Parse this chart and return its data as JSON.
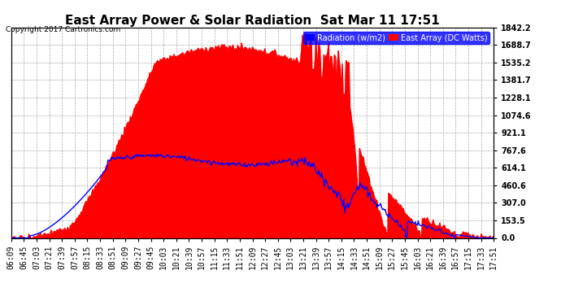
{
  "title": "East Array Power & Solar Radiation  Sat Mar 11 17:51",
  "copyright": "Copyright 2017 Cartronics.com",
  "legend_radiation": "Radiation (w/m2)",
  "legend_east": "East Array (DC Watts)",
  "yticks_right": [
    0.0,
    153.5,
    307.0,
    460.6,
    614.1,
    767.6,
    921.1,
    1074.6,
    1228.1,
    1381.7,
    1535.2,
    1688.7,
    1842.2
  ],
  "ymax": 1842.2,
  "ymin": 0.0,
  "background_color": "#ffffff",
  "plot_bg_color": "#ffffff",
  "grid_color": "#aaaaaa",
  "red_color": "#ff0000",
  "blue_color": "#0000ff",
  "title_fontsize": 11,
  "tick_fontsize": 7,
  "x_labels": [
    "06:09",
    "06:45",
    "07:03",
    "07:21",
    "07:39",
    "07:57",
    "08:15",
    "08:33",
    "08:51",
    "09:09",
    "09:27",
    "09:45",
    "10:03",
    "10:21",
    "10:39",
    "10:57",
    "11:15",
    "11:33",
    "11:51",
    "12:09",
    "12:27",
    "12:45",
    "13:03",
    "13:21",
    "13:39",
    "13:57",
    "14:15",
    "14:33",
    "14:51",
    "15:09",
    "15:27",
    "15:45",
    "16:03",
    "16:21",
    "16:39",
    "16:57",
    "17:15",
    "17:33",
    "17:51"
  ]
}
